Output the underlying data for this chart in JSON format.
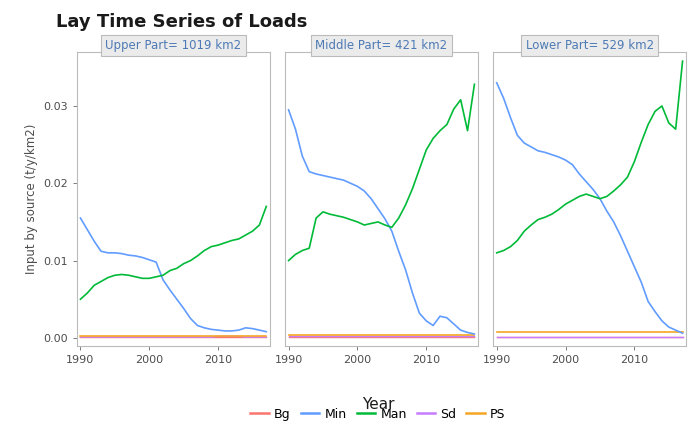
{
  "title": "Lay Time Series of Loads",
  "ylabel": "Input by source (t/y/km2)",
  "xlabel": "Year",
  "panels": [
    {
      "label": "Upper Part= 1019 km2"
    },
    {
      "label": "Middle Part= 421 km2"
    },
    {
      "label": "Lower Part= 529 km2"
    }
  ],
  "ylim": [
    -0.001,
    0.037
  ],
  "yticks": [
    0.0,
    0.01,
    0.02,
    0.03
  ],
  "xlim": [
    1989.5,
    2017.5
  ],
  "xticks": [
    1990,
    2000,
    2010
  ],
  "line_colors": {
    "Bg": "#F8766D",
    "Min": "#619CFF",
    "Man": "#00BA38",
    "Sd": "#C77CFF",
    "PS": "#F5A623"
  },
  "upper_Min": [
    0.0155,
    0.014,
    0.0125,
    0.0112,
    0.011,
    0.011,
    0.0109,
    0.0107,
    0.0106,
    0.0104,
    0.0101,
    0.0098,
    0.0075,
    0.0062,
    0.005,
    0.0038,
    0.0025,
    0.0016,
    0.0013,
    0.0011,
    0.001,
    0.0009,
    0.0009,
    0.001,
    0.0013,
    0.0012,
    0.001,
    0.0008
  ],
  "upper_Man": [
    0.005,
    0.0058,
    0.0068,
    0.0073,
    0.0078,
    0.0081,
    0.0082,
    0.0081,
    0.0079,
    0.0077,
    0.0077,
    0.0079,
    0.0081,
    0.0087,
    0.009,
    0.0096,
    0.01,
    0.0106,
    0.0113,
    0.0118,
    0.012,
    0.0123,
    0.0126,
    0.0128,
    0.0133,
    0.0138,
    0.0146,
    0.017
  ],
  "upper_Bg": [
    0.0001,
    0.0001,
    0.0001,
    0.0001,
    0.0001,
    0.0001,
    0.0001,
    0.0001,
    0.0001,
    0.0001,
    0.0001,
    0.0001,
    0.0001,
    0.0001,
    0.0001,
    0.0001,
    0.0001,
    0.0001,
    0.0001,
    0.0001,
    0.0001,
    0.0001,
    0.0001,
    0.0001,
    0.0001,
    0.0001,
    0.0001,
    0.0001
  ],
  "upper_Sd": [
    0.0001,
    0.0001,
    0.0001,
    0.0001,
    0.0001,
    0.0001,
    0.0001,
    0.0001,
    0.0001,
    0.0001,
    0.0001,
    0.0001,
    0.0001,
    0.0001,
    0.0001,
    0.0001,
    0.0001,
    0.0001,
    0.0001,
    0.0001,
    0.0002,
    0.0002,
    0.0002,
    0.0002,
    0.0001,
    0.0001,
    0.0001,
    0.0001
  ],
  "upper_PS": [
    0.0003,
    0.0003,
    0.0003,
    0.0003,
    0.0003,
    0.0003,
    0.0003,
    0.0003,
    0.0003,
    0.0003,
    0.0003,
    0.0003,
    0.0003,
    0.0003,
    0.0003,
    0.0003,
    0.0003,
    0.0003,
    0.0003,
    0.0003,
    0.0003,
    0.0003,
    0.0003,
    0.0003,
    0.0003,
    0.0003,
    0.0003,
    0.0003
  ],
  "middle_Min": [
    0.0295,
    0.027,
    0.0235,
    0.0215,
    0.0212,
    0.021,
    0.0208,
    0.0206,
    0.0204,
    0.02,
    0.0196,
    0.019,
    0.018,
    0.0167,
    0.0154,
    0.0138,
    0.0112,
    0.0088,
    0.0058,
    0.0032,
    0.0022,
    0.0016,
    0.0028,
    0.0026,
    0.0018,
    0.001,
    0.0007,
    0.0005
  ],
  "middle_Man": [
    0.01,
    0.0108,
    0.0113,
    0.0116,
    0.0155,
    0.0163,
    0.016,
    0.0158,
    0.0156,
    0.0153,
    0.015,
    0.0146,
    0.0148,
    0.015,
    0.0146,
    0.0143,
    0.0155,
    0.0172,
    0.0193,
    0.0218,
    0.0243,
    0.0258,
    0.0268,
    0.0276,
    0.0296,
    0.0308,
    0.0268,
    0.0328
  ],
  "middle_Bg": [
    0.0001,
    0.0001,
    0.0001,
    0.0001,
    0.0001,
    0.0001,
    0.0001,
    0.0001,
    0.0001,
    0.0001,
    0.0001,
    0.0001,
    0.0001,
    0.0001,
    0.0001,
    0.0001,
    0.0001,
    0.0001,
    0.0001,
    0.0001,
    0.0001,
    0.0001,
    0.0001,
    0.0001,
    0.0001,
    0.0001,
    0.0001,
    0.0001
  ],
  "middle_Sd": [
    0.0002,
    0.0002,
    0.0002,
    0.0002,
    0.0002,
    0.0002,
    0.0002,
    0.0002,
    0.0002,
    0.0002,
    0.0002,
    0.0002,
    0.0002,
    0.0002,
    0.0002,
    0.0002,
    0.0002,
    0.0002,
    0.0002,
    0.0002,
    0.0002,
    0.0002,
    0.0002,
    0.0002,
    0.0002,
    0.0002,
    0.0002,
    0.0002
  ],
  "middle_PS": [
    0.0004,
    0.0004,
    0.0004,
    0.0004,
    0.0004,
    0.0004,
    0.0004,
    0.0004,
    0.0004,
    0.0004,
    0.0004,
    0.0004,
    0.0004,
    0.0004,
    0.0004,
    0.0004,
    0.0004,
    0.0004,
    0.0004,
    0.0004,
    0.0004,
    0.0004,
    0.0004,
    0.0004,
    0.0004,
    0.0004,
    0.0004,
    0.0004
  ],
  "lower_Min": [
    0.033,
    0.031,
    0.0285,
    0.0262,
    0.0252,
    0.0247,
    0.0242,
    0.024,
    0.0237,
    0.0234,
    0.023,
    0.0224,
    0.0212,
    0.0202,
    0.0192,
    0.018,
    0.0164,
    0.015,
    0.0132,
    0.0112,
    0.0092,
    0.0072,
    0.0047,
    0.0034,
    0.0022,
    0.0014,
    0.001,
    0.0006
  ],
  "lower_Man": [
    0.011,
    0.0113,
    0.0118,
    0.0126,
    0.0138,
    0.0146,
    0.0153,
    0.0156,
    0.016,
    0.0166,
    0.0173,
    0.0178,
    0.0183,
    0.0186,
    0.0183,
    0.018,
    0.0183,
    0.019,
    0.0198,
    0.0208,
    0.0228,
    0.0253,
    0.0276,
    0.0293,
    0.03,
    0.0278,
    0.027,
    0.0358
  ],
  "lower_Bg": [
    0.0001,
    0.0001,
    0.0001,
    0.0001,
    0.0001,
    0.0001,
    0.0001,
    0.0001,
    0.0001,
    0.0001,
    0.0001,
    0.0001,
    0.0001,
    0.0001,
    0.0001,
    0.0001,
    0.0001,
    0.0001,
    0.0001,
    0.0001,
    0.0001,
    0.0001,
    0.0001,
    0.0001,
    0.0001,
    0.0001,
    0.0001,
    0.0001
  ],
  "lower_Sd": [
    0.0001,
    0.0001,
    0.0001,
    0.0001,
    0.0001,
    0.0001,
    0.0001,
    0.0001,
    0.0001,
    0.0001,
    0.0001,
    0.0001,
    0.0001,
    0.0001,
    0.0001,
    0.0001,
    0.0001,
    0.0001,
    0.0001,
    0.0001,
    0.0001,
    0.0001,
    0.0001,
    0.0001,
    0.0001,
    0.0001,
    0.0001,
    0.0001
  ],
  "lower_PS": [
    0.0008,
    0.0008,
    0.0008,
    0.0008,
    0.0008,
    0.0008,
    0.0008,
    0.0008,
    0.0008,
    0.0008,
    0.0008,
    0.0008,
    0.0008,
    0.0008,
    0.0008,
    0.0008,
    0.0008,
    0.0008,
    0.0008,
    0.0008,
    0.0008,
    0.0008,
    0.0008,
    0.0008,
    0.0008,
    0.0008,
    0.0008,
    0.0008
  ],
  "panel_bg": "#EBEBEB",
  "plot_bg": "#FFFFFF",
  "grid_color": "#FFFFFF",
  "border_color": "#BBBBBB",
  "title_color": "#1A1A1A",
  "axis_text_color": "#4D4D4D",
  "header_text_color": "#4D7AB5"
}
